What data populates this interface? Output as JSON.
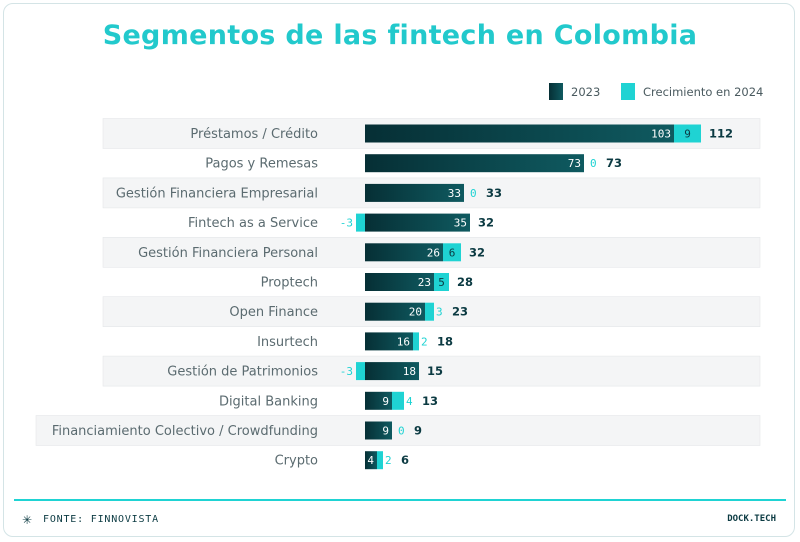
{
  "title": "Segmentos de las fintech en Colombia",
  "footer": {
    "source": "FONTE: FINNOVISTA",
    "brand": "DOCK.TECH",
    "icon": "asterisk-icon"
  },
  "colors": {
    "base_dark": "#062f35",
    "base_light": "#0f5a60",
    "growth": "#1fd3d3",
    "title": "#22c9cc",
    "row_bg": "#f4f5f6"
  },
  "chart_data": {
    "type": "bar",
    "orientation": "horizontal",
    "stacked": true,
    "legend_position": "top-right",
    "categories": [
      "Préstamos / Crédito",
      "Pagos y Remesas",
      "Gestión Financiera Empresarial",
      "Fintech as a Service",
      "Gestión Financiera Personal",
      "Proptech",
      "Open Finance",
      "Insurtech",
      "Gestión de Patrimonios",
      "Digital Banking",
      "Financiamiento Colectivo / Crowdfunding",
      "Crypto"
    ],
    "series": [
      {
        "name": "2023",
        "values": [
          103,
          73,
          33,
          35,
          26,
          23,
          20,
          16,
          18,
          9,
          9,
          4
        ]
      },
      {
        "name": "Crecimiento en 2024",
        "values": [
          9,
          0,
          0,
          -3,
          6,
          5,
          3,
          2,
          -3,
          4,
          0,
          2
        ]
      }
    ],
    "totals": [
      112,
      73,
      33,
      32,
      32,
      28,
      23,
      18,
      15,
      13,
      9,
      6
    ],
    "xlim": [
      0,
      112
    ]
  }
}
